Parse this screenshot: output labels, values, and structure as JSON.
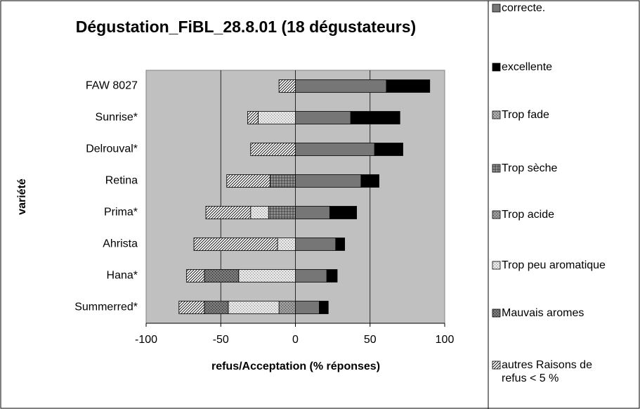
{
  "chart_data": {
    "type": "bar",
    "orientation": "horizontal",
    "stacked": true,
    "title": "Dégustation_FiBL_28.8.01 (18 dégustateurs)",
    "x_label": "refus/Acceptation (% réponses)",
    "y_label": "variété",
    "categories": [
      "FAW 8027",
      "Sunrise*",
      "Delrouval*",
      "Retina",
      "Prima*",
      "Ahrista",
      "Hana*",
      "Summerred*"
    ],
    "series": [
      {
        "name": "correcte.",
        "color": "#8c8c8c",
        "values": [
          61,
          37,
          53,
          44,
          23,
          27,
          21,
          16
        ]
      },
      {
        "name": "excellente",
        "color": "#000000",
        "values": [
          29,
          33,
          19,
          12,
          18,
          6,
          7,
          6
        ]
      },
      {
        "name": "Trop fade",
        "color": "#a8a8a8",
        "values": [
          0,
          0,
          0,
          0,
          0,
          0,
          0,
          0
        ]
      },
      {
        "name": "Trop sèche",
        "color": "#969696",
        "values": [
          0,
          0,
          0,
          -17,
          -18,
          0,
          0,
          0
        ]
      },
      {
        "name": "Trop acide",
        "color": "#9a9a9a",
        "values": [
          0,
          0,
          0,
          0,
          0,
          0,
          0,
          -11
        ]
      },
      {
        "name": "Trop peu aromatique",
        "color": "#e4e4e4",
        "values": [
          0,
          -25,
          0,
          0,
          -12,
          -12,
          -38,
          -34
        ]
      },
      {
        "name": "Mauvais aromes",
        "color": "#777777",
        "values": [
          0,
          0,
          0,
          0,
          0,
          0,
          -23,
          -16
        ]
      },
      {
        "name": "autres Raisons de refus < 5 %",
        "color": "#ffffff",
        "values": [
          -11,
          -7,
          -30,
          -29,
          -30,
          -56,
          -12,
          -17
        ]
      }
    ],
    "xlim": [
      -100,
      100
    ],
    "xticks": [
      -100,
      -50,
      0,
      50,
      100
    ],
    "grid": true
  }
}
